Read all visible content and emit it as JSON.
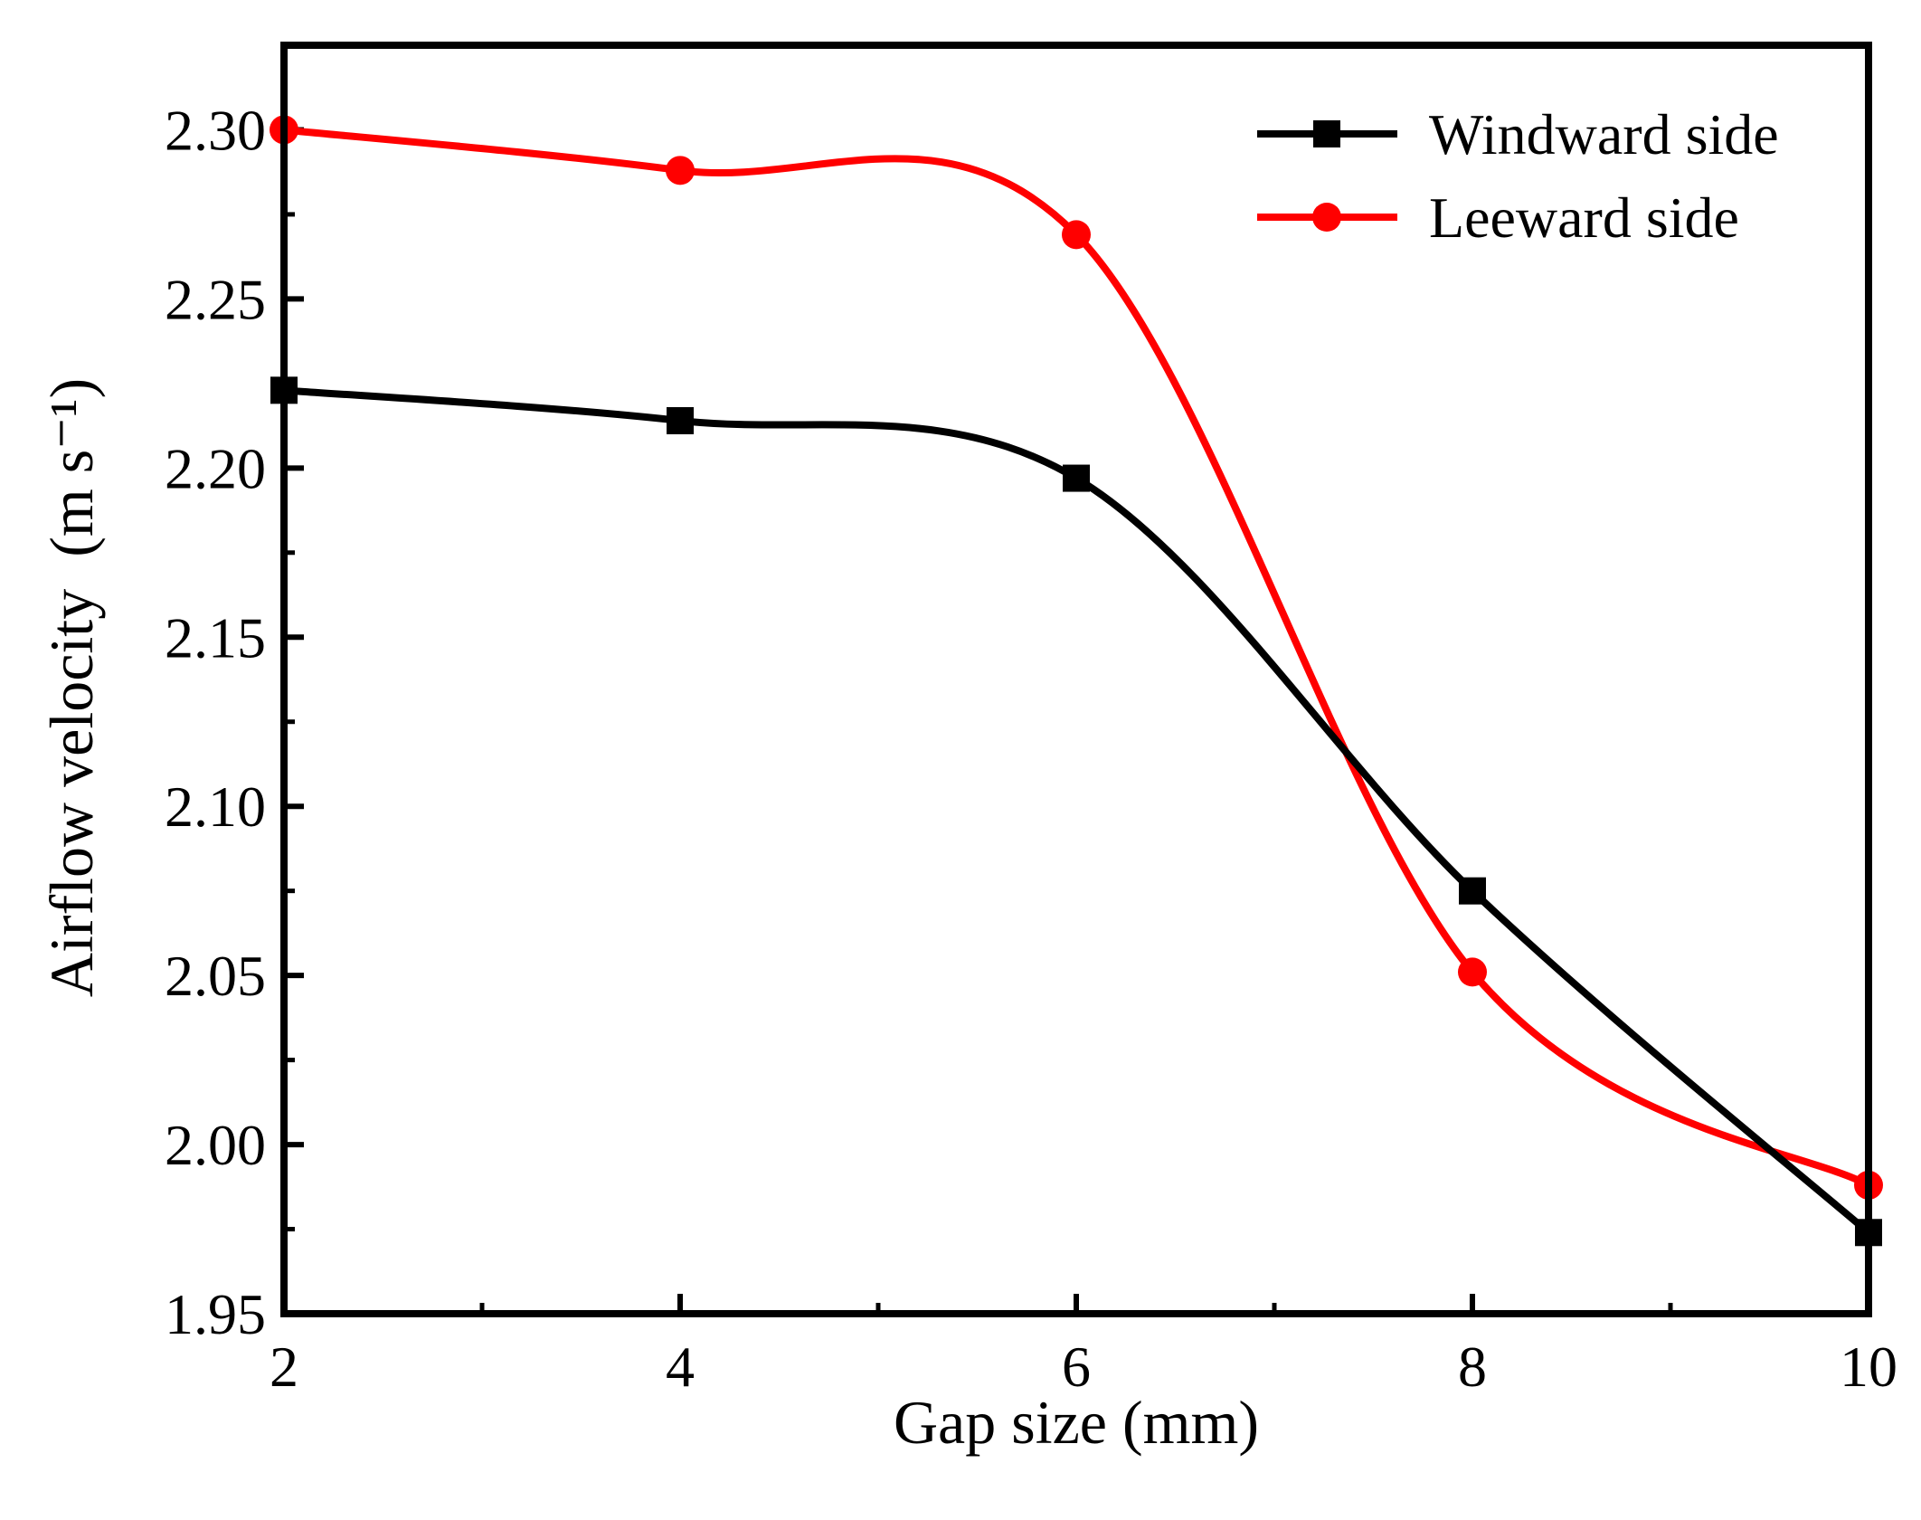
{
  "chart_data": {
    "type": "line",
    "title": "",
    "xlabel": "Gap size (mm)",
    "ylabel": "Airflow velocity",
    "ylabel_unit": "(m s⁻¹)",
    "xlim": [
      2,
      10
    ],
    "ylim": [
      1.95,
      2.325
    ],
    "xticks": [
      2,
      4,
      6,
      8,
      10
    ],
    "xtick_labels": [
      "2",
      "4",
      "6",
      "8",
      "10"
    ],
    "yticks": [
      1.95,
      2.0,
      2.05,
      2.1,
      2.15,
      2.2,
      2.25,
      2.3
    ],
    "ytick_labels": [
      "1.95",
      "2.00",
      "2.05",
      "2.10",
      "2.15",
      "2.20",
      "2.25",
      "2.30"
    ],
    "grid": false,
    "legend_position": "top-right",
    "x": [
      2,
      4,
      6,
      8,
      10
    ],
    "series": [
      {
        "name": "Windward side",
        "color": "#000000",
        "marker": "square",
        "values": [
          2.223,
          2.214,
          2.197,
          2.075,
          1.974
        ]
      },
      {
        "name": "Leeward side",
        "color": "#ff0000",
        "marker": "circle",
        "values": [
          2.3,
          2.288,
          2.269,
          2.051,
          1.988
        ]
      }
    ]
  }
}
